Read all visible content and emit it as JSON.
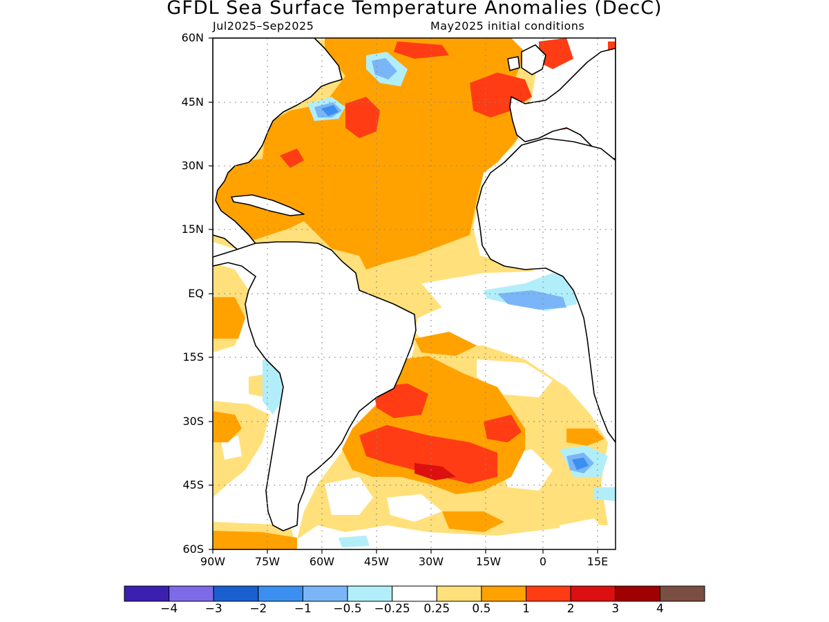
{
  "title": "GFDL Sea Surface Temperature Anomalies (DecC)",
  "subtitle_left": "Jul2025–Sep2025",
  "subtitle_right": "May2025 initial conditions",
  "map": {
    "region": "Atlantic Ocean",
    "lon_range": [
      -90,
      20
    ],
    "lat_range": [
      -60,
      60
    ],
    "grid": "dotted",
    "lat_ticks": [
      "60N",
      "45N",
      "30N",
      "15N",
      "EQ",
      "15S",
      "30S",
      "45S",
      "60S"
    ],
    "lon_ticks": [
      "90W",
      "75W",
      "60W",
      "45W",
      "30W",
      "15W",
      "0",
      "15E"
    ]
  },
  "colorbar": {
    "colors": [
      "#3a1fb0",
      "#7d6ae8",
      "#1a5fd0",
      "#3b8ff0",
      "#7ab6f7",
      "#b1eefa",
      "#ffffff",
      "#ffe07a",
      "#ffa200",
      "#ff3c14",
      "#dc1010",
      "#a00000",
      "#7a4e42"
    ],
    "labels": [
      "−4",
      "−3",
      "−2",
      "−1",
      "−0.5",
      "−0.25",
      "0.25",
      "0.5",
      "1",
      "2",
      "3",
      "4"
    ]
  }
}
